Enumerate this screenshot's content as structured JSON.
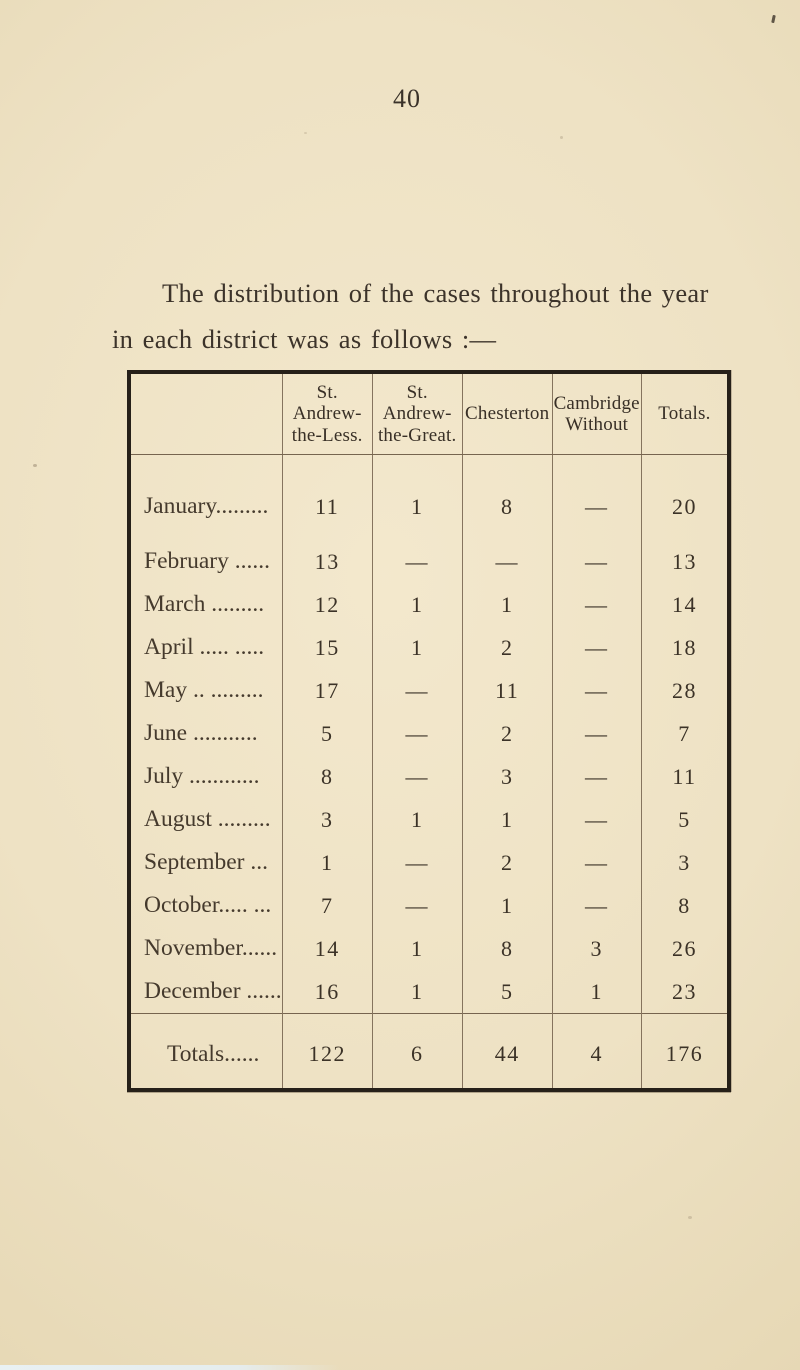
{
  "page": {
    "number": "40",
    "intro_text": "The distribution of the cases throughout the year\nin each district was as follows :—"
  },
  "table": {
    "columns": [
      "",
      "St.\nAndrew-\nthe-Less.",
      "St.\nAndrew-\nthe-Great.",
      "Chesterton",
      "Cambridge\nWithout",
      "Totals."
    ],
    "rows": [
      {
        "label": "January.........",
        "values": [
          "11",
          "1",
          "8",
          "—",
          "20"
        ]
      },
      {
        "label": "February ......",
        "values": [
          "13",
          "—",
          "—",
          "—",
          "13"
        ]
      },
      {
        "label": "March  .........",
        "values": [
          "12",
          "1",
          "1",
          "—",
          "14"
        ]
      },
      {
        "label": "April ..... .....",
        "values": [
          "15",
          "1",
          "2",
          "—",
          "18"
        ]
      },
      {
        "label": "May  .. .........",
        "values": [
          "17",
          "—",
          "11",
          "—",
          "28"
        ]
      },
      {
        "label": "June  ...........",
        "values": [
          "5",
          "—",
          "2",
          "—",
          "7"
        ]
      },
      {
        "label": "July  ............",
        "values": [
          "8",
          "—",
          "3",
          "—",
          "11"
        ]
      },
      {
        "label": "August .........",
        "values": [
          "3",
          "1",
          "1",
          "—",
          "5"
        ]
      },
      {
        "label": "September  ...",
        "values": [
          "1",
          "—",
          "2",
          "—",
          "3"
        ]
      },
      {
        "label": "October..... ...",
        "values": [
          "7",
          "—",
          "1",
          "—",
          "8"
        ]
      },
      {
        "label": "November......",
        "values": [
          "14",
          "1",
          "8",
          "3",
          "26"
        ]
      },
      {
        "label": "December ......",
        "values": [
          "16",
          "1",
          "5",
          "1",
          "23"
        ]
      }
    ],
    "totals": {
      "label": "Totals......",
      "values": [
        "122",
        "6",
        "44",
        "4",
        "176"
      ]
    }
  },
  "colors": {
    "paper": "#ecdfc1",
    "ink": "#3c332a",
    "table_outer_border": "#262019",
    "table_rule": "#6a5844"
  }
}
